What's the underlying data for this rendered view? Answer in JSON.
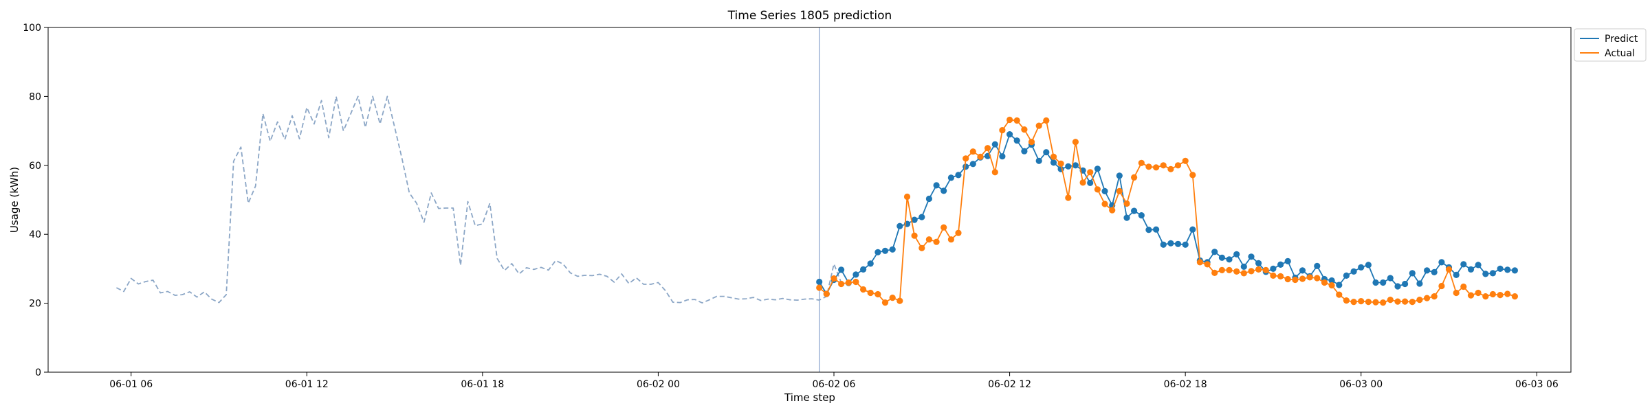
{
  "chart_data": {
    "type": "line",
    "title": "Time Series 1805 prediction",
    "xlabel": "Time step",
    "ylabel": "Usage (kWh)",
    "ylim": [
      0,
      100
    ],
    "yticks": [
      0,
      20,
      40,
      60,
      80,
      100
    ],
    "xlim": [
      "2024-06-01 03:10",
      "2024-06-03 07:10"
    ],
    "xticks": [
      {
        "t": "2024-06-01 06:00",
        "label": "06-01 06"
      },
      {
        "t": "2024-06-01 12:00",
        "label": "06-01 12"
      },
      {
        "t": "2024-06-01 18:00",
        "label": "06-01 18"
      },
      {
        "t": "2024-06-02 00:00",
        "label": "06-02 00"
      },
      {
        "t": "2024-06-02 06:00",
        "label": "06-02 06"
      },
      {
        "t": "2024-06-02 12:00",
        "label": "06-02 12"
      },
      {
        "t": "2024-06-02 18:00",
        "label": "06-02 18"
      },
      {
        "t": "2024-06-03 00:00",
        "label": "06-03 00"
      },
      {
        "t": "2024-06-03 06:00",
        "label": "06-03 06"
      }
    ],
    "legend_position": "top-right, outside plot",
    "vline": {
      "t": "2024-06-02 05:30",
      "color": "#8fa8d0"
    },
    "series": [
      {
        "name": "",
        "style": "dashed",
        "color": "#8ba6c6",
        "start": "2024-06-01 05:30",
        "interval_minutes": 15,
        "values": [
          24.5,
          23.4,
          27.2,
          25.6,
          26.3,
          26.7,
          23.0,
          23.4,
          22.3,
          22.5,
          23.3,
          21.8,
          23.3,
          21.2,
          20.2,
          22.5,
          61.2,
          65.3,
          49.0,
          54.0,
          75.0,
          67.0,
          72.6,
          67.5,
          74.4,
          67.7,
          76.8,
          72.0,
          78.8,
          68.0,
          80.0,
          70.0,
          75.0,
          80.0,
          71.0,
          80.0,
          72.0,
          80.0,
          71.0,
          62.0,
          52.0,
          49.0,
          43.5,
          52.0,
          47.5,
          47.6,
          47.6,
          31.0,
          49.5,
          42.5,
          43.0,
          49.0,
          33.0,
          29.5,
          31.5,
          28.5,
          30.3,
          29.8,
          30.4,
          29.6,
          32.4,
          31.4,
          28.8,
          27.8,
          28.1,
          28.0,
          28.4,
          27.8,
          26.1,
          28.5,
          25.7,
          27.4,
          25.5,
          25.5,
          26.0,
          23.6,
          20.3,
          20.2,
          21.0,
          21.1,
          20.1,
          21.0,
          22.0,
          22.0,
          21.6,
          21.2,
          21.3,
          21.7,
          20.8,
          21.2,
          21.0,
          21.4,
          21.0,
          20.9,
          21.2,
          21.3,
          20.9,
          22.0,
          31.4,
          26.0
        ]
      },
      {
        "name": "Predict",
        "style": "solid-markers",
        "color": "#1f77b4",
        "start": "2024-06-02 05:30",
        "interval_minutes": 15,
        "values": [
          26.2,
          22.7,
          26.8,
          29.7,
          25.9,
          28.3,
          29.8,
          31.5,
          34.8,
          35.2,
          35.6,
          42.4,
          43.0,
          44.2,
          45.0,
          50.3,
          54.2,
          52.6,
          56.4,
          57.2,
          59.6,
          60.4,
          62.3,
          62.7,
          66.1,
          62.6,
          69.0,
          67.2,
          64.1,
          66.0,
          61.3,
          63.8,
          60.8,
          58.9,
          59.7,
          60.0,
          58.5,
          54.9,
          59.0,
          52.5,
          48.4,
          57.0,
          44.8,
          46.8,
          45.5,
          41.3,
          41.4,
          37.0,
          37.4,
          37.2,
          37.0,
          41.4,
          32.4,
          31.9,
          34.9,
          33.2,
          32.7,
          34.2,
          30.6,
          33.5,
          31.6,
          29.1,
          30.0,
          31.2,
          32.2,
          27.4,
          29.5,
          27.8,
          30.8,
          27.0,
          26.6,
          25.3,
          28.0,
          29.2,
          30.4,
          31.1,
          26.0,
          26.0,
          27.3,
          24.9,
          25.6,
          28.7,
          25.7,
          29.5,
          29.0,
          31.9,
          30.4,
          28.2,
          31.3,
          29.8,
          31.1,
          28.5,
          28.7,
          30.0,
          29.7,
          29.5
        ]
      },
      {
        "name": "Actual",
        "style": "solid-markers",
        "color": "#ff7f0e",
        "start": "2024-06-02 05:30",
        "interval_minutes": 15,
        "values": [
          24.5,
          22.7,
          27.2,
          25.6,
          26.0,
          26.2,
          24.0,
          23.0,
          22.6,
          20.2,
          21.6,
          20.7,
          50.9,
          39.6,
          36.0,
          38.5,
          37.8,
          42.0,
          38.5,
          40.4,
          62.0,
          64.0,
          62.5,
          65.0,
          58.0,
          70.2,
          73.2,
          73.0,
          70.4,
          66.8,
          71.5,
          73.0,
          62.5,
          60.5,
          50.6,
          66.8,
          55.0,
          58.0,
          53.0,
          48.8,
          47.0,
          52.5,
          48.9,
          56.5,
          60.7,
          59.6,
          59.4,
          60.0,
          58.9,
          60.0,
          61.3,
          57.2,
          31.9,
          31.3,
          28.8,
          29.6,
          29.6,
          29.2,
          28.7,
          29.3,
          29.8,
          29.6,
          28.0,
          27.8,
          27.0,
          26.8,
          27.1,
          27.5,
          27.3,
          26.0,
          25.2,
          22.5,
          20.8,
          20.4,
          20.6,
          20.4,
          20.3,
          20.2,
          21.0,
          20.5,
          20.5,
          20.4,
          21.0,
          21.5,
          22.0,
          25.0,
          29.8,
          23.0,
          24.8,
          22.3,
          23.0,
          22.0,
          22.6,
          22.4,
          22.7,
          22.0
        ]
      }
    ]
  }
}
